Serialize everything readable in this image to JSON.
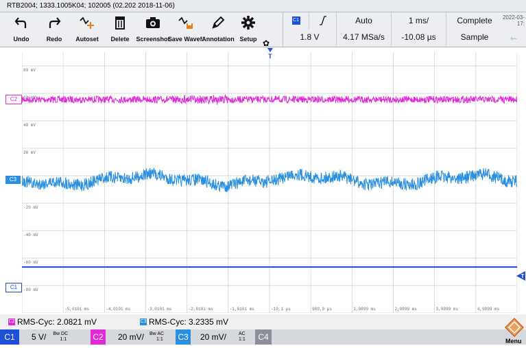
{
  "title": "RTB2004; 1333.1005K04; 102005 (02.202 2018-11-06)",
  "datetime": "2022-03-\n17:",
  "toolbar": {
    "undo": "Undo",
    "redo": "Redo",
    "autoset": "Autoset",
    "delete": "Delete",
    "screenshot": "Screenshot",
    "save_waveform": "Save Wavef.",
    "annotation": "Annotation",
    "setup": "Setup"
  },
  "trigger": {
    "source": "C1",
    "level": "1.8 V",
    "mode": "Auto",
    "sample_rate": "4.17 MSa/s",
    "timebase": "1 ms/",
    "position": "-10.08 µs",
    "state": "Complete",
    "acquisition": "Sample"
  },
  "grid_labels": {
    "y": [
      "80 mV",
      "60 mV",
      "40 mV",
      "20 mV",
      "0",
      "-20 mV",
      "-40 mV",
      "-60 mV",
      "-80 mV",
      "-100 mV"
    ],
    "x": [
      "-5,0101 ms",
      "-4,0101 ms",
      "-3,0101 ms",
      "-2,0101 ms",
      "-1,0101 ms",
      "-10,1 µs",
      "989,9 µs",
      "1,9899 ms",
      "2,9899 ms",
      "3,9899 ms",
      "4,9899 ms"
    ]
  },
  "channel_markers": {
    "c2": "C2",
    "c3": "C3",
    "c1": "C1"
  },
  "measurements": {
    "m1": {
      "channel": "C2",
      "text": "RMS-Cyc: 2.0821 mV"
    },
    "m2": {
      "channel": "C3",
      "text": "RMS-Cyc: 3.2335 mV"
    }
  },
  "channels": {
    "c1": {
      "name": "C1",
      "scale": "5 V/",
      "coupling": "DC",
      "bw": "Bw",
      "probe": "1:1"
    },
    "c2": {
      "name": "C2",
      "scale": "20 mV/",
      "coupling": "AC",
      "bw": "Bw",
      "probe": "1:1"
    },
    "c3": {
      "name": "C3",
      "scale": "20 mV/",
      "coupling": "AC",
      "probe": "1:1"
    },
    "c4": {
      "name": "C4"
    }
  },
  "menu_label": "Menu",
  "colors": {
    "c1": "#1f4fd6",
    "c2": "#e02ad6",
    "c3": "#2b8fe0",
    "c4": "#8a8f99",
    "trigger": "#1f4fd6"
  }
}
